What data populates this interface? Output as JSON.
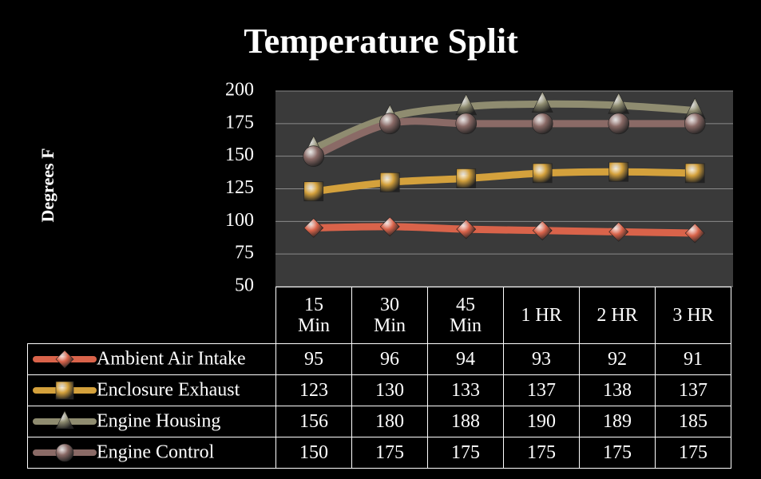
{
  "chart_data": {
    "type": "line",
    "title": "Temperature Split",
    "y_label": "Degrees F",
    "categories": [
      "15 Min",
      "30 Min",
      "45 Min",
      "1 HR",
      "2 HR",
      "3 HR"
    ],
    "ylim": [
      50,
      200
    ],
    "yticks": [
      50,
      75,
      100,
      125,
      150,
      175,
      200
    ],
    "grid": true,
    "series": [
      {
        "name": "Ambient Air Intake",
        "color": "#d9634a",
        "marker": "diamond",
        "values": [
          95,
          96,
          94,
          93,
          92,
          91
        ]
      },
      {
        "name": "Enclosure Exhaust",
        "color": "#d4a13c",
        "marker": "square",
        "values": [
          123,
          130,
          133,
          137,
          138,
          137
        ]
      },
      {
        "name": "Engine Housing",
        "color": "#8f8c70",
        "marker": "triangle",
        "values": [
          156,
          180,
          188,
          190,
          189,
          185
        ]
      },
      {
        "name": "Engine Control",
        "color": "#8a6a66",
        "marker": "circle",
        "values": [
          150,
          175,
          175,
          175,
          175,
          175
        ]
      }
    ]
  }
}
